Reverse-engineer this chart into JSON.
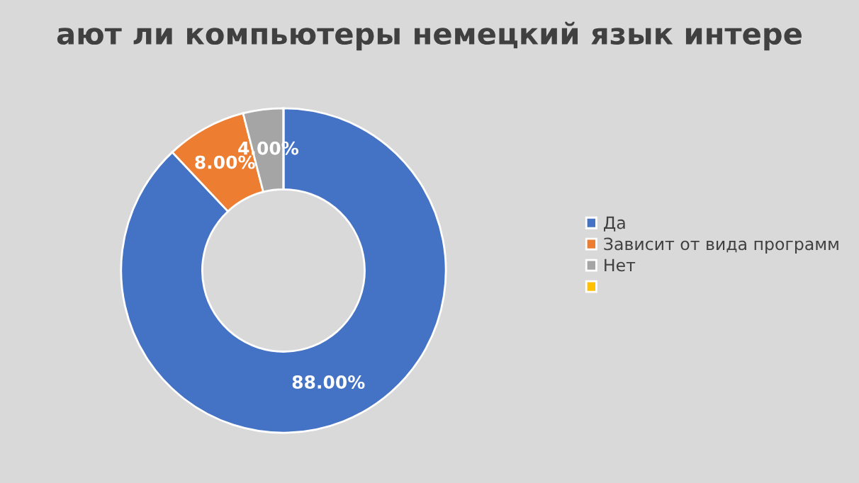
{
  "chart_data": {
    "type": "donut",
    "title": "ают ли компьютеры немецкий язык интере",
    "categories": [
      "Да",
      "Зависит от вида программ",
      "Нет",
      null
    ],
    "values": [
      88,
      8,
      4,
      0
    ],
    "colors": [
      "#4472c4",
      "#ed7d31",
      "#a5a5a5",
      "#ffc000"
    ],
    "value_labels": [
      "88.00%",
      "8.00%",
      "4.00%",
      null
    ],
    "legend": "right"
  }
}
